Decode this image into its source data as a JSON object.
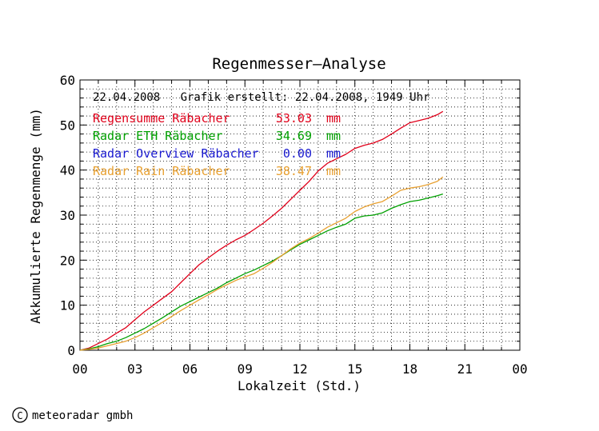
{
  "chart_data": {
    "type": "line",
    "title": "Regenmesser—Analyse",
    "xlabel": "Lokalzeit (Std.)",
    "ylabel": "Akkumulierte Regenmenge (mm)",
    "xlim": [
      0,
      24
    ],
    "ylim": [
      0,
      60
    ],
    "x_ticks": [
      "00",
      "03",
      "06",
      "09",
      "12",
      "15",
      "18",
      "21",
      "00"
    ],
    "y_ticks": [
      "0",
      "10",
      "20",
      "30",
      "40",
      "50",
      "60"
    ],
    "grid": true,
    "info_line": "22.04.2008   Grafik erstellt: 22.04.2008, 1949 Uhr",
    "legend_position": "top-left",
    "series": [
      {
        "name": "Regensumme Räbacher",
        "total": "53.03",
        "unit": "mm",
        "color": "#e0001a",
        "x": [
          0,
          0.5,
          1,
          1.5,
          2,
          2.5,
          3,
          3.5,
          4,
          4.5,
          5,
          5.5,
          6,
          6.5,
          7,
          7.5,
          8,
          8.5,
          9,
          9.5,
          10,
          10.5,
          11,
          11.5,
          12,
          12.5,
          13,
          13.5,
          14,
          14.5,
          15,
          15.5,
          16,
          16.5,
          17,
          17.5,
          18,
          18.5,
          19,
          19.5,
          19.8
        ],
        "y": [
          0,
          0.5,
          1.5,
          2.5,
          3.8,
          5.0,
          6.8,
          8.5,
          10.0,
          11.5,
          13.0,
          15.0,
          17.0,
          19.0,
          20.5,
          22.0,
          23.3,
          24.5,
          25.5,
          26.8,
          28.2,
          29.8,
          31.5,
          33.5,
          35.5,
          37.5,
          39.8,
          41.5,
          42.5,
          43.5,
          44.8,
          45.5,
          46.0,
          46.8,
          48.0,
          49.3,
          50.5,
          51.0,
          51.5,
          52.3,
          53.03
        ]
      },
      {
        "name": "Radar ETH Räbacher",
        "total": "34.69",
        "unit": "mm",
        "color": "#00a000",
        "x": [
          0,
          0.5,
          1,
          1.5,
          2,
          2.5,
          3,
          3.5,
          4,
          4.5,
          5,
          5.5,
          6,
          6.5,
          7,
          7.5,
          8,
          8.5,
          9,
          9.5,
          10,
          10.5,
          11,
          11.5,
          12,
          12.5,
          13,
          13.5,
          14,
          14.5,
          15,
          15.5,
          16,
          16.5,
          17,
          17.5,
          18,
          18.5,
          19,
          19.5,
          19.8
        ],
        "y": [
          0,
          0.3,
          0.8,
          1.5,
          2.0,
          2.8,
          3.8,
          4.8,
          6.0,
          7.2,
          8.5,
          9.8,
          10.8,
          11.8,
          12.8,
          13.8,
          15.0,
          16.0,
          17.0,
          17.8,
          18.8,
          19.8,
          21.0,
          22.3,
          23.5,
          24.5,
          25.5,
          26.5,
          27.3,
          28.0,
          29.3,
          29.8,
          30.0,
          30.5,
          31.5,
          32.3,
          33.0,
          33.3,
          33.8,
          34.3,
          34.69
        ]
      },
      {
        "name": "Radar Overview Räbacher",
        "total": " 0.00",
        "unit": "mm",
        "color": "#1a1ad0",
        "x": [],
        "y": []
      },
      {
        "name": "Radar Rain Räbacher",
        "total": "38.47",
        "unit": "mm",
        "color": "#e8a030",
        "x": [
          0,
          0.5,
          1,
          1.5,
          2,
          2.5,
          3,
          3.5,
          4,
          4.5,
          5,
          5.5,
          6,
          6.5,
          7,
          7.5,
          8,
          8.5,
          9,
          9.5,
          10,
          10.5,
          11,
          11.5,
          12,
          12.5,
          13,
          13.5,
          14,
          14.5,
          15,
          15.5,
          16,
          16.5,
          17,
          17.5,
          18,
          18.5,
          19,
          19.5,
          19.8
        ],
        "y": [
          0,
          0.2,
          0.5,
          1.0,
          1.5,
          2.0,
          2.8,
          3.8,
          5.0,
          6.2,
          7.5,
          8.8,
          10.0,
          11.2,
          12.3,
          13.5,
          14.5,
          15.5,
          16.3,
          17.0,
          18.2,
          19.5,
          21.0,
          22.5,
          23.8,
          24.8,
          26.0,
          27.3,
          28.3,
          29.3,
          30.8,
          31.8,
          32.5,
          33.0,
          34.2,
          35.5,
          36.0,
          36.3,
          36.8,
          37.5,
          38.47
        ]
      }
    ]
  },
  "footer": {
    "copyright_symbol": "C",
    "company": "meteoradar gmbh"
  }
}
